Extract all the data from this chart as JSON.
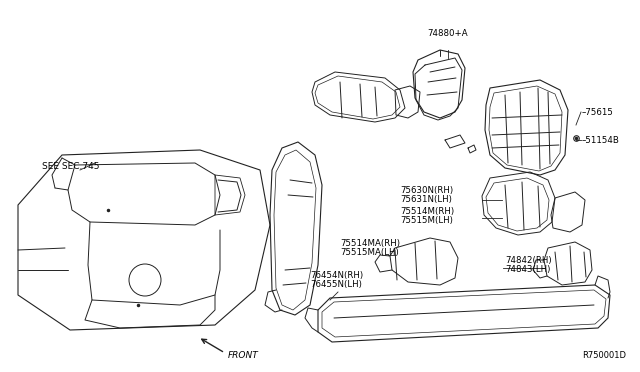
{
  "background_color": "#ffffff",
  "fig_width": 6.4,
  "fig_height": 3.72,
  "dpi": 100,
  "labels": {
    "see_sec": "SEE SEC.745",
    "front": "FRONT",
    "ref_code": "R750001D",
    "part_74880": "74880+A",
    "part_75615": "75615",
    "part_51154B": "51154B",
    "part_75630N": "75630N(RH)",
    "part_75631N": "75631N(LH)",
    "part_75514M": "75514M(RH)",
    "part_75515M": "75515M(LH)",
    "part_75514MA": "75514MA(RH)",
    "part_75515MA": "75515MA(LH)",
    "part_74842": "74842(RH)",
    "part_74843": "74843(LH)",
    "part_76454N": "76454N(RH)",
    "part_76455N": "76455N(LH)"
  },
  "lc": "#222222",
  "tc": "#000000",
  "lw": 0.7
}
